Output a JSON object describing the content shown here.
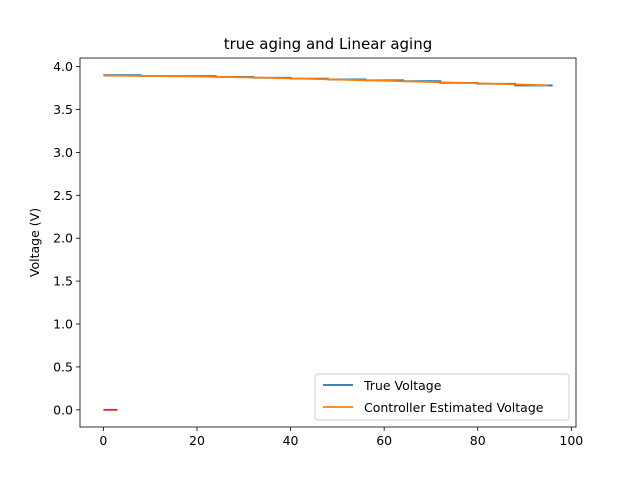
{
  "chart_data": {
    "type": "line",
    "title": "true aging and Linear aging",
    "xlabel": "",
    "ylabel": "Voltage (V)",
    "xlim": [
      -5,
      101
    ],
    "ylim": [
      -0.2,
      4.1
    ],
    "xticks": [
      0,
      20,
      40,
      60,
      80,
      100
    ],
    "yticks": [
      0.0,
      0.5,
      1.0,
      1.5,
      2.0,
      2.5,
      3.0,
      3.5,
      4.0
    ],
    "xtick_labels": [
      "0",
      "20",
      "40",
      "60",
      "80",
      "100"
    ],
    "ytick_labels": [
      "0.0",
      "0.5",
      "1.0",
      "1.5",
      "2.0",
      "2.5",
      "3.0",
      "3.5",
      "4.0"
    ],
    "grid": false,
    "legend_position": "lower right",
    "series": [
      {
        "name": "True Voltage",
        "color": "#1f77b4",
        "x": [
          0,
          8,
          8,
          16,
          16,
          24,
          24,
          32,
          32,
          40,
          40,
          48,
          48,
          56,
          56,
          64,
          64,
          72,
          72,
          80,
          80,
          88,
          88,
          96
        ],
        "y": [
          3.9,
          3.9,
          3.89,
          3.89,
          3.89,
          3.89,
          3.88,
          3.88,
          3.87,
          3.87,
          3.86,
          3.86,
          3.85,
          3.85,
          3.84,
          3.84,
          3.83,
          3.83,
          3.81,
          3.81,
          3.8,
          3.8,
          3.78,
          3.78
        ]
      },
      {
        "name": "Controller Estimated Voltage",
        "color": "#ff7f0e",
        "x": [
          0,
          10,
          20,
          30,
          40,
          50,
          60,
          70,
          80,
          90,
          95
        ],
        "y": [
          3.895,
          3.89,
          3.885,
          3.875,
          3.863,
          3.849,
          3.835,
          3.82,
          3.805,
          3.79,
          3.782
        ]
      },
      {
        "name": "",
        "color": "#d62728",
        "x": [
          0,
          3
        ],
        "y": [
          0.0,
          0.0
        ]
      }
    ]
  }
}
